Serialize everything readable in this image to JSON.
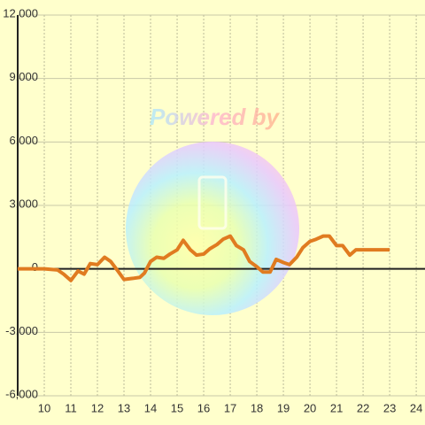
{
  "chart_data": {
    "type": "line",
    "watermark": "Powered by",
    "x": [
      9,
      10,
      10.5,
      10.73,
      11,
      11.27,
      11.5,
      11.73,
      12,
      12.27,
      12.5,
      12.77,
      13,
      13.33,
      13.6,
      13.77,
      14,
      14.23,
      14.5,
      14.73,
      15,
      15.23,
      15.5,
      15.73,
      16,
      16.23,
      16.5,
      16.73,
      17,
      17.23,
      17.5,
      17.73,
      18,
      18.23,
      18.5,
      18.73,
      19,
      19.23,
      19.5,
      19.73,
      20,
      20.23,
      20.5,
      20.73,
      21,
      21.23,
      21.5,
      21.73,
      22,
      23
    ],
    "series": [
      {
        "color": "#e07b20",
        "values": [
          0,
          0,
          -50,
          -250,
          -550,
          -100,
          -250,
          250,
          200,
          550,
          350,
          -100,
          -500,
          -450,
          -400,
          -200,
          350,
          550,
          500,
          700,
          900,
          1350,
          900,
          650,
          700,
          950,
          1150,
          1400,
          1550,
          1100,
          900,
          350,
          100,
          -150,
          -150,
          450,
          300,
          200,
          550,
          1000,
          1300,
          1400,
          1550,
          1550,
          1100,
          1100,
          650,
          900,
          900,
          900
        ]
      }
    ],
    "xlim": [
      9,
      24.33
    ],
    "xticks": [
      10,
      11,
      12,
      13,
      14,
      15,
      16,
      17,
      18,
      19,
      20,
      21,
      22,
      23,
      24
    ],
    "ylim": [
      -6000,
      12000
    ],
    "yticks": [
      {
        "value": -6000,
        "label": "-6,000"
      },
      {
        "value": -3000,
        "label": "-3,000"
      },
      0,
      {
        "value": 3000,
        "label": "3,000"
      },
      {
        "value": 6000,
        "label": "6,000"
      },
      {
        "value": 9000,
        "label": "9,000"
      },
      {
        "value": 12000,
        "label": "12,000"
      }
    ],
    "grid": true
  }
}
